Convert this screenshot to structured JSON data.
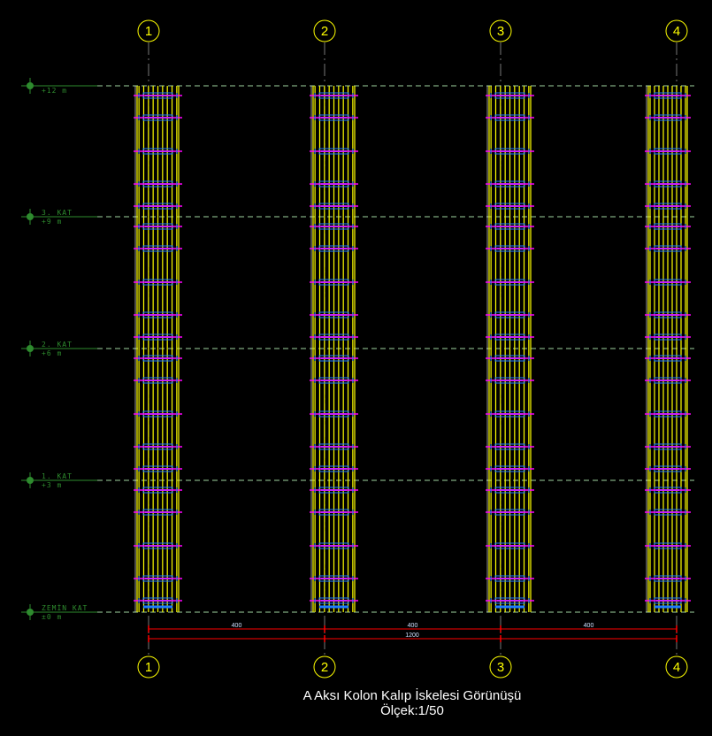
{
  "title": "A Aksı Kolon Kalıp İskelesi Görünüşü",
  "scale": "Ölçek:1/50",
  "axes": [
    "1",
    "2",
    "3",
    "4"
  ],
  "levels": [
    {
      "name": "",
      "elevation": "+12 m"
    },
    {
      "name": "3. KAT",
      "elevation": "+9 m"
    },
    {
      "name": "2. KAT",
      "elevation": "+6 m"
    },
    {
      "name": "1. KAT",
      "elevation": "+3 m"
    },
    {
      "name": "ZEMİN KAT",
      "elevation": "±0 m"
    }
  ],
  "dimensions": {
    "spans": [
      "400",
      "400",
      "400"
    ],
    "total": "1200"
  },
  "colors": {
    "background": "#000000",
    "axis_bubble": "#ffff00",
    "level": "#2e8b2e",
    "formwork": "#ffff00",
    "clamp": "#1e7bff",
    "tie": "#ff00ff",
    "dimension": "#ff0000"
  }
}
